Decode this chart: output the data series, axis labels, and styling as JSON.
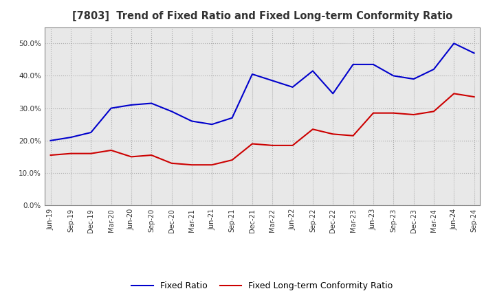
{
  "title": "[7803]  Trend of Fixed Ratio and Fixed Long-term Conformity Ratio",
  "x_labels": [
    "Jun-19",
    "Sep-19",
    "Dec-19",
    "Mar-20",
    "Jun-20",
    "Sep-20",
    "Dec-20",
    "Mar-21",
    "Jun-21",
    "Sep-21",
    "Dec-21",
    "Mar-22",
    "Jun-22",
    "Sep-22",
    "Dec-22",
    "Mar-23",
    "Jun-23",
    "Sep-23",
    "Dec-23",
    "Mar-24",
    "Jun-24",
    "Sep-24"
  ],
  "fixed_ratio": [
    20.0,
    21.0,
    22.5,
    30.0,
    31.0,
    31.5,
    29.0,
    26.0,
    25.0,
    27.0,
    40.5,
    38.5,
    36.5,
    41.5,
    34.5,
    43.5,
    43.5,
    40.0,
    39.0,
    42.0,
    50.0,
    47.0
  ],
  "fixed_lt_conformity": [
    15.5,
    16.0,
    16.0,
    17.0,
    15.0,
    15.5,
    13.0,
    12.5,
    12.5,
    14.0,
    19.0,
    18.5,
    18.5,
    23.5,
    22.0,
    21.5,
    28.5,
    28.5,
    28.0,
    29.0,
    34.5,
    33.5
  ],
  "fixed_ratio_color": "#0000cc",
  "fixed_lt_color": "#cc0000",
  "ylim": [
    0,
    55
  ],
  "yticks": [
    0.0,
    10.0,
    20.0,
    30.0,
    40.0,
    50.0
  ],
  "plot_bg_color": "#e8e8e8",
  "fig_bg_color": "#ffffff",
  "grid_color": "#aaaaaa",
  "legend_fixed_ratio": "Fixed Ratio",
  "legend_fixed_lt": "Fixed Long-term Conformity Ratio",
  "title_color": "#333333"
}
